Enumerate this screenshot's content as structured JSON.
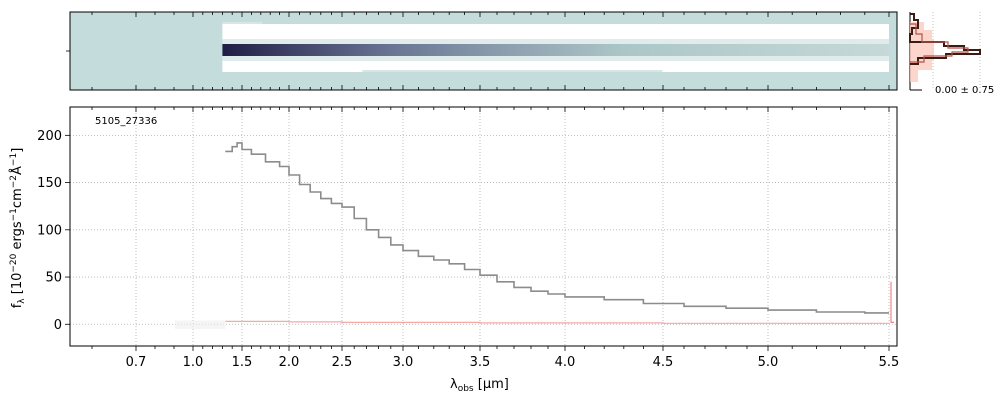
{
  "chart_data": [
    {
      "panel": "2d-spectrum",
      "type": "heatmap",
      "xlim": [
        0.55,
        5.55
      ],
      "colormap": [
        "#c4dcdb",
        "#ffffff",
        "#1f1d45"
      ],
      "trace_range": [
        1.3,
        5.5
      ]
    },
    {
      "panel": "1d-spectrum",
      "type": "line",
      "object_id": "5105_27336",
      "xlabel_main": "λ",
      "xlabel_sub": "obs",
      "xlabel_unit": " [μm]",
      "ylabel_text": "f_λ [10^-20 ergs^-1 cm^-2 Å^-1]",
      "xlim": [
        0.55,
        5.55
      ],
      "ylim": [
        -23,
        230
      ],
      "xtick_values": [
        0.7,
        1.0,
        1.5,
        2.0,
        2.5,
        3.0,
        3.5,
        4.0,
        4.5,
        5.0,
        5.5
      ],
      "xtick_labels": [
        "0.7",
        "1.0",
        "1.5",
        "2.0",
        "2.5",
        "3.0",
        "3.5",
        "4.0",
        "4.5",
        "5.0",
        "5.5"
      ],
      "ytick_values": [
        0,
        50,
        100,
        150,
        200
      ],
      "ytick_labels": [
        "0",
        "50",
        "100",
        "150",
        "200"
      ],
      "grid": true,
      "series": [
        {
          "color": "#8c8c8c",
          "x": [
            1.33,
            1.4,
            1.45,
            1.5,
            1.6,
            1.75,
            1.9,
            2.0,
            2.1,
            2.2,
            2.3,
            2.4,
            2.5,
            2.6,
            2.7,
            2.8,
            2.9,
            3.0,
            3.1,
            3.2,
            3.3,
            3.4,
            3.5,
            3.6,
            3.7,
            3.8,
            3.9,
            4.0,
            4.2,
            4.4,
            4.6,
            4.8,
            5.0,
            5.2,
            5.4,
            5.5
          ],
          "y": [
            183,
            188,
            192,
            185,
            180,
            172,
            167,
            158,
            148,
            140,
            133,
            128,
            124,
            112,
            100,
            92,
            84,
            78,
            72,
            68,
            64,
            58,
            52,
            45,
            39,
            35,
            32,
            29,
            26,
            22,
            19,
            17,
            15,
            13,
            12,
            12
          ]
        },
        {
          "color": "#f4a9a8",
          "x": [
            1.33,
            1.5,
            2.0,
            2.5,
            3.0,
            3.5,
            4.0,
            4.5,
            5.0,
            5.5
          ],
          "y": [
            3,
            3,
            2.5,
            2,
            2,
            1.5,
            1.5,
            1,
            1,
            1
          ]
        }
      ]
    },
    {
      "panel": "cross-dispersion-profile",
      "type": "line",
      "label": "0.00 ± 0.75",
      "colors": [
        "#3a1c15",
        "#b5524a",
        "#fbcabf"
      ]
    }
  ]
}
